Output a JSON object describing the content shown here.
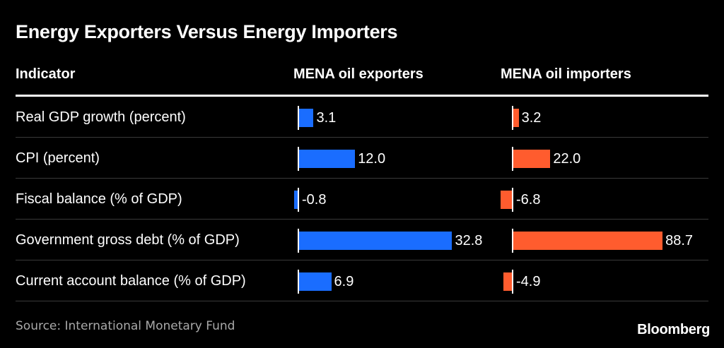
{
  "title": "Energy Exporters Versus Energy Importers",
  "headers": {
    "indicator": "Indicator",
    "exporters": "MENA oil exporters",
    "importers": "MENA oil importers"
  },
  "source": "Source: International Monetary Fund",
  "logo": "Bloomberg",
  "colors": {
    "exporters": "#1a6dff",
    "importers": "#ff5c2e",
    "background": "#000000"
  },
  "chart_data": {
    "type": "table",
    "title": "Energy Exporters Versus Energy Importers",
    "columns": [
      "Indicator",
      "MENA oil exporters",
      "MENA oil importers"
    ],
    "rows": [
      {
        "indicator": "Real GDP growth (percent)",
        "exporters": 3.1,
        "exporters_label": "3.1",
        "importers": 3.2,
        "importers_label": "3.2"
      },
      {
        "indicator": "CPI (percent)",
        "exporters": 12.0,
        "exporters_label": "12.0",
        "importers": 22.0,
        "importers_label": "22.0"
      },
      {
        "indicator": "Fiscal balance (% of GDP)",
        "exporters": -0.8,
        "exporters_label": "-0.8",
        "importers": -6.8,
        "importers_label": "-6.8"
      },
      {
        "indicator": "Government gross debt (% of GDP)",
        "exporters": 32.8,
        "exporters_label": "32.8",
        "importers": 88.7,
        "importers_label": "88.7"
      },
      {
        "indicator": "Current account balance (% of GDP)",
        "exporters": 6.9,
        "exporters_label": "6.9",
        "importers": -4.9,
        "importers_label": "-4.9"
      }
    ]
  }
}
